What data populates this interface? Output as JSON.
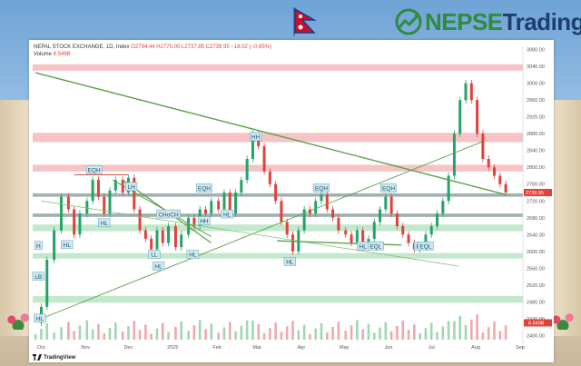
{
  "brand": {
    "nepse": "NEPSE",
    "trading": "Trading",
    "green": "#2e8b3f",
    "navy": "#1c3f6e"
  },
  "header": {
    "title": "NEPAL STOCK EXCHANGE, 1D, Index",
    "ohlc": "O2794.44 H2770.00 L2737.85 C2739.95 −18.02 (−0.65%)",
    "volume_label": "Volume",
    "volume_value": "6.549B"
  },
  "footer": {
    "tradingview": "TradingView"
  },
  "chart_data": {
    "type": "line",
    "title": "NEPAL STOCK EXCHANGE, 1D, Index",
    "yticks": [
      "3080.00",
      "3040.00",
      "3000.00",
      "2960.00",
      "2920.00",
      "2880.00",
      "2840.00",
      "2800.00",
      "2760.00",
      "2720.00",
      "2680.00",
      "2640.00",
      "2600.00",
      "2560.00",
      "2520.00",
      "2480.00",
      "2440.00",
      "2400.00"
    ],
    "ylim": [
      2390,
      3090
    ],
    "xticks": [
      {
        "label": "Oct",
        "date": "2024-10-01"
      },
      {
        "label": "Nov",
        "date": "2024-11-01"
      },
      {
        "label": "Dec",
        "date": "2024-12-01"
      },
      {
        "label": "2025",
        "date": "2025-01-01"
      },
      {
        "label": "Feb",
        "date": "2025-02-01"
      },
      {
        "label": "Mar",
        "date": "2025-03-01"
      },
      {
        "label": "Apr",
        "date": "2025-04-01"
      },
      {
        "label": "May",
        "date": "2025-05-01"
      },
      {
        "label": "Jun",
        "date": "2025-06-01"
      },
      {
        "label": "Jul",
        "date": "2025-07-01"
      },
      {
        "label": "Aug",
        "date": "2025-08-01"
      },
      {
        "label": "Sep",
        "date": "2025-09-01"
      }
    ],
    "xlim": [
      "2024-09-25",
      "2025-09-03"
    ],
    "last_price": "2739.95",
    "last_price_color": "#e0423a",
    "volume_last": "6.549B",
    "zones": [
      {
        "y0": 3030,
        "y1": 3045,
        "color": "#f4b9bd"
      },
      {
        "y0": 2860,
        "y1": 2882,
        "color": "#f4b9bd"
      },
      {
        "y0": 2790,
        "y1": 2806,
        "color": "#f4b9bd"
      },
      {
        "y0": 2730,
        "y1": 2738,
        "color": "#8fa3a3"
      },
      {
        "y0": 2682,
        "y1": 2690,
        "color": "#8fa3a3"
      },
      {
        "y0": 2648,
        "y1": 2664,
        "color": "#b9e4c4"
      },
      {
        "y0": 2583,
        "y1": 2596,
        "color": "#b9e4c4"
      },
      {
        "y0": 2478,
        "y1": 2494,
        "color": "#b9e4c4"
      }
    ],
    "price_path": [
      [
        "2024-09-27",
        2430
      ],
      [
        "2024-10-01",
        2468
      ],
      [
        "2024-10-05",
        2580
      ],
      [
        "2024-10-10",
        2650
      ],
      [
        "2024-10-15",
        2730
      ],
      [
        "2024-10-20",
        2700
      ],
      [
        "2024-10-24",
        2640
      ],
      [
        "2024-10-28",
        2690
      ],
      [
        "2024-11-02",
        2720
      ],
      [
        "2024-11-06",
        2770
      ],
      [
        "2024-11-10",
        2730
      ],
      [
        "2024-11-14",
        2690
      ],
      [
        "2024-11-18",
        2745
      ],
      [
        "2024-11-22",
        2770
      ],
      [
        "2024-11-27",
        2740
      ],
      [
        "2024-12-01",
        2775
      ],
      [
        "2024-12-05",
        2700
      ],
      [
        "2024-12-09",
        2650
      ],
      [
        "2024-12-13",
        2630
      ],
      [
        "2024-12-17",
        2605
      ],
      [
        "2024-12-21",
        2650
      ],
      [
        "2024-12-25",
        2620
      ],
      [
        "2024-12-29",
        2660
      ],
      [
        "2025-01-03",
        2610
      ],
      [
        "2025-01-07",
        2640
      ],
      [
        "2025-01-12",
        2680
      ],
      [
        "2025-01-16",
        2660
      ],
      [
        "2025-01-20",
        2700
      ],
      [
        "2025-01-24",
        2690
      ],
      [
        "2025-01-28",
        2720
      ],
      [
        "2025-02-02",
        2700
      ],
      [
        "2025-02-06",
        2740
      ],
      [
        "2025-02-10",
        2690
      ],
      [
        "2025-02-14",
        2740
      ],
      [
        "2025-02-18",
        2770
      ],
      [
        "2025-02-22",
        2820
      ],
      [
        "2025-02-26",
        2880
      ],
      [
        "2025-03-02",
        2850
      ],
      [
        "2025-03-06",
        2790
      ],
      [
        "2025-03-10",
        2760
      ],
      [
        "2025-03-14",
        2720
      ],
      [
        "2025-03-18",
        2670
      ],
      [
        "2025-03-22",
        2640
      ],
      [
        "2025-03-26",
        2600
      ],
      [
        "2025-03-30",
        2650
      ],
      [
        "2025-04-03",
        2700
      ],
      [
        "2025-04-07",
        2690
      ],
      [
        "2025-04-11",
        2720
      ],
      [
        "2025-04-15",
        2735
      ],
      [
        "2025-04-19",
        2700
      ],
      [
        "2025-04-23",
        2680
      ],
      [
        "2025-04-27",
        2650
      ],
      [
        "2025-05-02",
        2640
      ],
      [
        "2025-05-06",
        2620
      ],
      [
        "2025-05-10",
        2650
      ],
      [
        "2025-05-14",
        2610
      ],
      [
        "2025-05-18",
        2630
      ],
      [
        "2025-05-22",
        2670
      ],
      [
        "2025-05-26",
        2700
      ],
      [
        "2025-05-30",
        2730
      ],
      [
        "2025-06-03",
        2690
      ],
      [
        "2025-06-07",
        2660
      ],
      [
        "2025-06-11",
        2640
      ],
      [
        "2025-06-15",
        2620
      ],
      [
        "2025-06-19",
        2605
      ],
      [
        "2025-06-23",
        2615
      ],
      [
        "2025-06-27",
        2640
      ],
      [
        "2025-07-01",
        2660
      ],
      [
        "2025-07-05",
        2690
      ],
      [
        "2025-07-09",
        2720
      ],
      [
        "2025-07-13",
        2780
      ],
      [
        "2025-07-17",
        2880
      ],
      [
        "2025-07-21",
        2960
      ],
      [
        "2025-07-25",
        3000
      ],
      [
        "2025-07-29",
        2960
      ],
      [
        "2025-08-02",
        2880
      ],
      [
        "2025-08-06",
        2820
      ],
      [
        "2025-08-10",
        2800
      ],
      [
        "2025-08-14",
        2780
      ],
      [
        "2025-08-18",
        2760
      ],
      [
        "2025-08-22",
        2740
      ]
    ],
    "trendlines": [
      {
        "from": [
          "2024-09-27",
          3025
        ],
        "to": [
          "2025-08-22",
          2735
        ],
        "color": "#5aa24a",
        "width": 1.4
      },
      {
        "from": [
          "2024-11-27",
          2770
        ],
        "to": [
          "2025-01-28",
          2620
        ],
        "color": "#5aa24a",
        "width": 1.2
      },
      {
        "from": [
          "2024-10-01",
          2440
        ],
        "to": [
          "2025-08-05",
          2860
        ],
        "color": "#5aa24a",
        "width": 0.9
      },
      {
        "from": [
          "2024-10-01",
          2720
        ],
        "to": [
          "2025-07-20",
          2565
        ],
        "color": "#7bbf6a",
        "width": 0.7
      },
      {
        "from": [
          "2025-03-15",
          2625
        ],
        "to": [
          "2025-06-10",
          2615
        ],
        "color": "#5aa24a",
        "width": 1.4
      },
      {
        "from": [
          "2024-11-20",
          2770
        ],
        "to": [
          "2025-01-28",
          2635
        ],
        "color": "#5aa24a",
        "width": 1.0
      }
    ],
    "swing_lines": [
      {
        "from": [
          "2024-10-24",
          2782
        ],
        "to": [
          "2024-12-01",
          2782
        ],
        "color": "#d9534f"
      }
    ],
    "labels": [
      {
        "text": "EQH",
        "date": "2024-11-07",
        "price": 2793
      },
      {
        "text": "LH",
        "date": "2024-12-03",
        "price": 2753
      },
      {
        "text": "HL",
        "date": "2024-11-14",
        "price": 2667
      },
      {
        "text": "HL",
        "date": "2024-10-19",
        "price": 2615
      },
      {
        "text": "H",
        "date": "2024-09-29",
        "price": 2613
      },
      {
        "text": "LB",
        "date": "2024-09-29",
        "price": 2540
      },
      {
        "text": "HL",
        "date": "2024-09-30",
        "price": 2440
      },
      {
        "text": "LL",
        "date": "2024-12-19",
        "price": 2592
      },
      {
        "text": "HL",
        "date": "2024-12-22",
        "price": 2564
      },
      {
        "text": "HL",
        "date": "2025-01-15",
        "price": 2592
      },
      {
        "text": "CHoCH",
        "date": "2024-12-29",
        "price": 2688
      },
      {
        "text": "HH",
        "date": "2025-01-23",
        "price": 2672
      },
      {
        "text": "HL",
        "date": "2025-02-08",
        "price": 2688
      },
      {
        "text": "EQH",
        "date": "2025-01-23",
        "price": 2750
      },
      {
        "text": "HH",
        "date": "2025-02-28",
        "price": 2872
      },
      {
        "text": "HL",
        "date": "2025-03-24",
        "price": 2575
      },
      {
        "text": "EQH",
        "date": "2025-04-15",
        "price": 2750
      },
      {
        "text": "EQH",
        "date": "2025-06-01",
        "price": 2750
      },
      {
        "text": "HL",
        "date": "2025-05-14",
        "price": 2612
      },
      {
        "text": "EQL",
        "date": "2025-05-23",
        "price": 2612
      },
      {
        "text": "HL",
        "date": "2025-06-23",
        "price": 2612
      },
      {
        "text": "EQL",
        "date": "2025-06-27",
        "price": 2612
      }
    ],
    "grid": false,
    "legend": "none"
  }
}
